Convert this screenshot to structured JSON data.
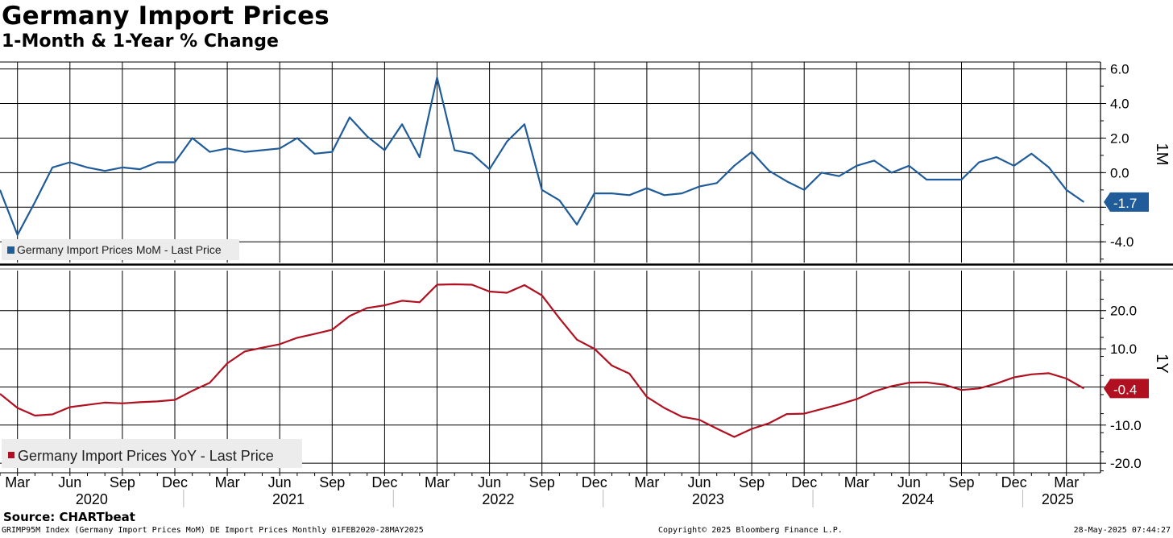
{
  "header": {
    "title": "Germany Import Prices",
    "subtitle": "1-Month & 1-Year % Change"
  },
  "footer": {
    "source": "Source: CHARTbeat",
    "index_info": "GRIMP95M Index (Germany Import Prices MoM) DE Import Prices  Monthly 01FEB2020-28MAY2025",
    "copyright": "Copyright© 2025 Bloomberg Finance L.P.",
    "timestamp": "28-May-2025 07:44:27"
  },
  "colors": {
    "mom": "#1f5c99",
    "yoy": "#b0101f",
    "grid": "#000000",
    "minor_grid": "#b8b8b8"
  },
  "chart_data": [
    {
      "type": "line",
      "panel": "top",
      "side_label": "1M",
      "legend": "Germany Import Prices MoM - Last Price",
      "last_value_label": "-1.7",
      "ylim": [
        -5.2,
        6.4
      ],
      "yticks": [
        6.0,
        4.0,
        2.0,
        0.0,
        -2.0,
        -4.0
      ],
      "ytick_labels": [
        "6.0",
        "4.0",
        "2.0",
        "0.0",
        "",
        "-4.0"
      ],
      "x_start": "2020-02",
      "x_end": "2025-04",
      "values": [
        -1.0,
        -3.6,
        -1.7,
        0.3,
        0.6,
        0.3,
        0.1,
        0.3,
        0.2,
        0.6,
        0.6,
        2.0,
        1.2,
        1.4,
        1.2,
        1.3,
        1.4,
        2.0,
        1.1,
        1.2,
        3.2,
        2.1,
        1.3,
        2.8,
        0.9,
        5.5,
        1.3,
        1.1,
        0.2,
        1.8,
        2.8,
        -1.0,
        -1.6,
        -3.0,
        -1.2,
        -1.2,
        -1.3,
        -0.9,
        -1.3,
        -1.2,
        -0.8,
        -0.6,
        0.4,
        1.2,
        0.1,
        -0.5,
        -1.0,
        0.0,
        -0.2,
        0.4,
        0.7,
        0.0,
        0.4,
        -0.4,
        -0.4,
        -0.4,
        0.6,
        0.9,
        0.4,
        1.1,
        0.3,
        -1.0,
        -1.7
      ]
    },
    {
      "type": "line",
      "panel": "bottom",
      "side_label": "1Y",
      "legend": "Germany Import Prices YoY - Last Price",
      "last_value_label": "-0.4",
      "ylim": [
        -22.5,
        30.5
      ],
      "yticks": [
        20.0,
        10.0,
        0.0,
        -10.0,
        -20.0
      ],
      "ytick_labels": [
        "20.0",
        "10.0",
        "",
        "-10.0",
        "-20.0"
      ],
      "x_start": "2020-02",
      "x_end": "2025-04",
      "values": [
        -1.8,
        -5.5,
        -7.5,
        -7.2,
        -5.3,
        -4.7,
        -4.1,
        -4.3,
        -4.0,
        -3.8,
        -3.4,
        -1.0,
        1.1,
        6.2,
        9.3,
        10.3,
        11.2,
        12.9,
        13.9,
        15.0,
        18.6,
        20.7,
        21.4,
        22.6,
        22.2,
        26.8,
        26.9,
        26.8,
        25.0,
        24.7,
        26.7,
        24.0,
        18.0,
        12.4,
        10.0,
        5.6,
        3.5,
        -2.6,
        -5.5,
        -7.8,
        -8.6,
        -10.9,
        -13.1,
        -11.0,
        -9.5,
        -7.1,
        -7.0,
        -5.8,
        -4.6,
        -3.2,
        -1.2,
        0.2,
        1.1,
        1.2,
        0.6,
        -0.8,
        -0.4,
        0.9,
        2.5,
        3.3,
        3.6,
        2.2,
        -0.4
      ]
    }
  ],
  "x_axis": {
    "month_labels": [
      "Mar",
      "Jun",
      "Sep",
      "Dec",
      "Mar",
      "Jun",
      "Sep",
      "Dec",
      "Mar",
      "Jun",
      "Sep",
      "Dec",
      "Mar",
      "Jun",
      "Sep",
      "Dec",
      "Mar",
      "Jun",
      "Sep",
      "Dec",
      "Mar"
    ],
    "year_labels": [
      "2020",
      "2021",
      "2022",
      "2023",
      "2024",
      "2025"
    ]
  }
}
